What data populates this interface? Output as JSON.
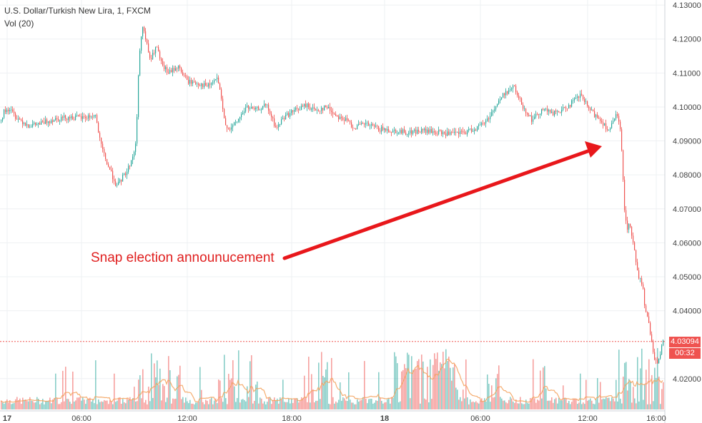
{
  "header": {
    "title": "U.S. Dollar/Turkish New Lira, 1, FXCM",
    "indicator": "Vol (20)"
  },
  "annotation": {
    "text": "Snap election announucement",
    "color": "#e8171b"
  },
  "last_price": {
    "value": "4.03094",
    "countdown": "00:32",
    "color": "#ef5350"
  },
  "colors": {
    "up": "#26a69a",
    "down": "#ef5350",
    "volume_ma": "#f4a460",
    "grid": "#eef0f3"
  },
  "chart_data": {
    "type": "candlestick",
    "title": "U.S. Dollar/Turkish New Lira, 1, FXCM",
    "timeframe": "1 minute",
    "ylim": [
      4.0105,
      4.1315
    ],
    "y_ticks": [
      "4.13000",
      "4.12000",
      "4.11000",
      "4.10000",
      "4.09000",
      "4.08000",
      "4.07000",
      "4.06000",
      "4.05000",
      "4.04000",
      "4.02000"
    ],
    "x_ticks": [
      "17",
      "06:00",
      "12:00",
      "18:00",
      "18",
      "06:00",
      "12:00",
      "16:00"
    ],
    "price_path": [
      [
        0,
        4.096
      ],
      [
        5,
        4.0985
      ],
      [
        12,
        4.0995
      ],
      [
        22,
        4.097
      ],
      [
        40,
        4.0945
      ],
      [
        55,
        4.095
      ],
      [
        75,
        4.0965
      ],
      [
        95,
        4.097
      ],
      [
        115,
        4.0968
      ],
      [
        133,
        4.0975
      ],
      [
        140,
        4.089
      ],
      [
        148,
        4.084
      ],
      [
        156,
        4.08
      ],
      [
        163,
        4.0765
      ],
      [
        170,
        4.079
      ],
      [
        178,
        4.0815
      ],
      [
        186,
        4.086
      ],
      [
        190,
        4.09
      ],
      [
        193,
        4.11
      ],
      [
        198,
        4.1245
      ],
      [
        204,
        4.119
      ],
      [
        210,
        4.1135
      ],
      [
        218,
        4.118
      ],
      [
        226,
        4.112
      ],
      [
        236,
        4.11
      ],
      [
        248,
        4.112
      ],
      [
        262,
        4.1075
      ],
      [
        276,
        4.107
      ],
      [
        290,
        4.106
      ],
      [
        304,
        4.1085
      ],
      [
        314,
        4.095
      ],
      [
        322,
        4.0935
      ],
      [
        332,
        4.096
      ],
      [
        344,
        4.1
      ],
      [
        356,
        4.099
      ],
      [
        372,
        4.1005
      ],
      [
        386,
        4.0935
      ],
      [
        396,
        4.097
      ],
      [
        412,
        4.099
      ],
      [
        428,
        4.1005
      ],
      [
        440,
        4.099
      ],
      [
        456,
        4.1
      ],
      [
        470,
        4.0975
      ],
      [
        484,
        4.096
      ],
      [
        495,
        4.094
      ],
      [
        510,
        4.095
      ],
      [
        530,
        4.0935
      ],
      [
        550,
        4.093
      ],
      [
        570,
        4.0925
      ],
      [
        590,
        4.093
      ],
      [
        610,
        4.0925
      ],
      [
        630,
        4.092
      ],
      [
        650,
        4.0925
      ],
      [
        668,
        4.094
      ],
      [
        680,
        4.096
      ],
      [
        692,
        4.1
      ],
      [
        705,
        4.104
      ],
      [
        718,
        4.106
      ],
      [
        730,
        4.1005
      ],
      [
        744,
        4.096
      ],
      [
        758,
        4.0995
      ],
      [
        772,
        4.098
      ],
      [
        786,
        4.099
      ],
      [
        798,
        4.101
      ],
      [
        812,
        4.1035
      ],
      [
        824,
        4.099
      ],
      [
        838,
        4.0965
      ],
      [
        852,
        4.093
      ],
      [
        862,
        4.098
      ],
      [
        867,
        4.093
      ],
      [
        870,
        4.084
      ],
      [
        873,
        4.07
      ],
      [
        876,
        4.064
      ],
      [
        880,
        4.066
      ],
      [
        884,
        4.061
      ],
      [
        888,
        4.056
      ],
      [
        893,
        4.05
      ],
      [
        898,
        4.048
      ],
      [
        902,
        4.04
      ],
      [
        906,
        4.037
      ],
      [
        910,
        4.032
      ],
      [
        915,
        4.026
      ],
      [
        920,
        4.025
      ],
      [
        924,
        4.028
      ],
      [
        927,
        4.031
      ]
    ],
    "volume": "histogram per bar, green/red by direction, with Vol (20) moving average line"
  }
}
